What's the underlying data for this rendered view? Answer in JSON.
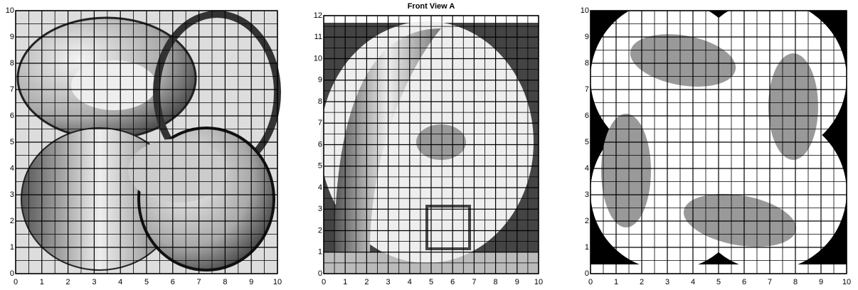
{
  "panels": [
    {
      "xticks": [
        0,
        1,
        2,
        3,
        4,
        5,
        6,
        7,
        8,
        9,
        10
      ],
      "yticks": [
        0,
        1,
        2,
        3,
        4,
        5,
        6,
        7,
        8,
        9,
        10
      ]
    },
    {
      "title": "Front View A",
      "xticks": [
        0,
        1,
        2,
        3,
        4,
        5,
        6,
        7,
        8,
        9,
        10
      ],
      "yticks": [
        0,
        1,
        2,
        3,
        4,
        5,
        6,
        7,
        8,
        9,
        10,
        11,
        12
      ]
    },
    {
      "xticks": [
        0,
        1,
        2,
        3,
        4,
        5,
        6,
        7,
        8,
        9,
        10
      ],
      "yticks": [
        0,
        1,
        2,
        3,
        4,
        5,
        6,
        7,
        8,
        9,
        10
      ]
    }
  ]
}
